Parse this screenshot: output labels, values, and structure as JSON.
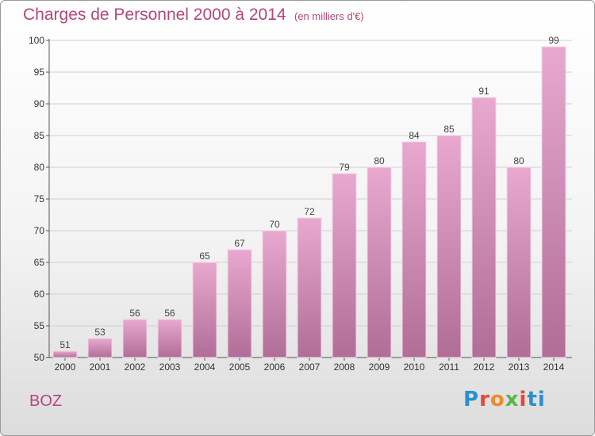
{
  "header": {
    "title": "Charges de Personnel 2000 à 2014",
    "subtitle": "(en milliers d'€)"
  },
  "footer": {
    "place": "BOZ",
    "logo": "Proxiti"
  },
  "colors": {
    "title": "#b5467a",
    "bar_top": "#e8a8cf",
    "bar_bottom": "#b06e97",
    "grid": "#cfcfcf"
  },
  "chart_data": {
    "type": "bar",
    "categories": [
      "2000",
      "2001",
      "2002",
      "2003",
      "2004",
      "2005",
      "2006",
      "2007",
      "2008",
      "2009",
      "2010",
      "2011",
      "2012",
      "2013",
      "2014"
    ],
    "values": [
      51,
      53,
      56,
      56,
      65,
      67,
      70,
      72,
      79,
      80,
      84,
      85,
      91,
      80,
      99
    ],
    "data_labels": [
      "51",
      "53",
      "56",
      "56",
      "65",
      "67",
      "70",
      "72",
      "79",
      "80",
      "84",
      "85",
      "91",
      "80",
      "99"
    ],
    "y_ticks": [
      "50",
      "55",
      "60",
      "65",
      "70",
      "75",
      "80",
      "85",
      "90",
      "95",
      "100"
    ],
    "ylim": [
      50,
      100
    ],
    "grid": true
  }
}
